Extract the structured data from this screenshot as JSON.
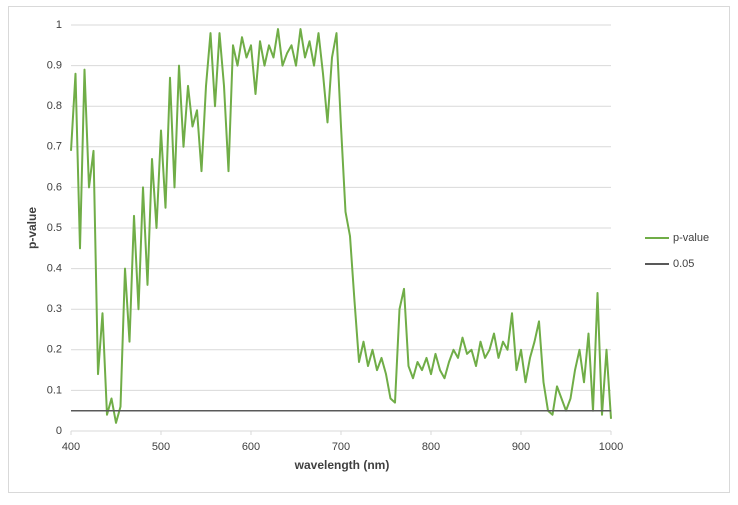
{
  "chart_data": {
    "type": "line",
    "x_label": "wavelength (nm)",
    "y_label": "p-value",
    "xlim": [
      400,
      1000
    ],
    "xticks": [
      400,
      500,
      600,
      700,
      800,
      900,
      1000
    ],
    "ylim": [
      0,
      1
    ],
    "yticks": [
      0,
      0.1,
      0.2,
      0.3,
      0.4,
      0.5,
      0.6,
      0.7,
      0.8,
      0.9,
      1
    ],
    "grid": true,
    "legend": "right",
    "series": [
      {
        "name": "p-value",
        "color": "#70ad47",
        "x": [
          400,
          405,
          410,
          415,
          420,
          425,
          430,
          435,
          440,
          445,
          450,
          455,
          460,
          465,
          470,
          475,
          480,
          485,
          490,
          495,
          500,
          505,
          510,
          515,
          520,
          525,
          530,
          535,
          540,
          545,
          550,
          555,
          560,
          565,
          570,
          575,
          580,
          585,
          590,
          595,
          600,
          605,
          610,
          615,
          620,
          625,
          630,
          635,
          640,
          645,
          650,
          655,
          660,
          665,
          670,
          675,
          680,
          685,
          690,
          695,
          700,
          705,
          710,
          715,
          720,
          725,
          730,
          735,
          740,
          745,
          750,
          755,
          760,
          765,
          770,
          775,
          780,
          785,
          790,
          795,
          800,
          805,
          810,
          815,
          820,
          825,
          830,
          835,
          840,
          845,
          850,
          855,
          860,
          865,
          870,
          875,
          880,
          885,
          890,
          895,
          900,
          905,
          910,
          915,
          920,
          925,
          930,
          935,
          940,
          945,
          950,
          955,
          960,
          965,
          970,
          975,
          980,
          985,
          990,
          995,
          1000
        ],
        "values": [
          0.69,
          0.88,
          0.45,
          0.89,
          0.6,
          0.69,
          0.14,
          0.29,
          0.04,
          0.08,
          0.02,
          0.06,
          0.4,
          0.22,
          0.53,
          0.3,
          0.6,
          0.36,
          0.67,
          0.5,
          0.74,
          0.55,
          0.87,
          0.6,
          0.9,
          0.7,
          0.85,
          0.75,
          0.79,
          0.64,
          0.85,
          0.98,
          0.8,
          0.98,
          0.85,
          0.64,
          0.95,
          0.9,
          0.97,
          0.92,
          0.95,
          0.83,
          0.96,
          0.9,
          0.95,
          0.92,
          0.99,
          0.9,
          0.93,
          0.95,
          0.9,
          0.99,
          0.92,
          0.96,
          0.9,
          0.98,
          0.88,
          0.76,
          0.92,
          0.98,
          0.75,
          0.54,
          0.48,
          0.32,
          0.17,
          0.22,
          0.16,
          0.2,
          0.15,
          0.18,
          0.14,
          0.08,
          0.07,
          0.3,
          0.35,
          0.16,
          0.13,
          0.17,
          0.15,
          0.18,
          0.14,
          0.19,
          0.15,
          0.13,
          0.17,
          0.2,
          0.18,
          0.23,
          0.19,
          0.2,
          0.16,
          0.22,
          0.18,
          0.2,
          0.24,
          0.18,
          0.22,
          0.2,
          0.29,
          0.15,
          0.2,
          0.12,
          0.18,
          0.22,
          0.27,
          0.12,
          0.05,
          0.04,
          0.11,
          0.08,
          0.05,
          0.08,
          0.15,
          0.2,
          0.12,
          0.24,
          0.05,
          0.34,
          0.04,
          0.2,
          0.03
        ]
      },
      {
        "name": "0.05",
        "color": "#595959",
        "x": [
          400,
          1000
        ],
        "values": [
          0.05,
          0.05
        ]
      }
    ]
  }
}
